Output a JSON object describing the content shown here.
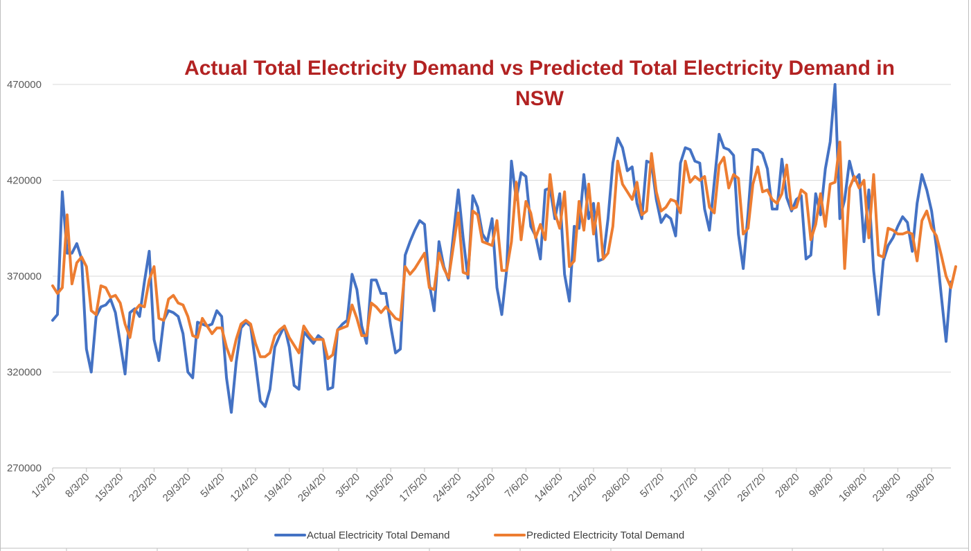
{
  "chart_data": {
    "type": "line",
    "title": "Actual Total Electricity Demand vs Predicted Total Electricity Demand in NSW",
    "title_lines": [
      "Actual Total Electricity Demand vs Predicted Total Electricity Demand in",
      "NSW"
    ],
    "xlabel": "",
    "ylabel": "",
    "ylim": [
      270000,
      470000
    ],
    "yticks": [
      270000,
      320000,
      370000,
      420000,
      470000
    ],
    "grid": true,
    "legend_position": "bottom",
    "x_tick_labels": [
      "1/3/20",
      "8/3/20",
      "15/3/20",
      "22/3/20",
      "29/3/20",
      "5/4/20",
      "12/4/20",
      "19/4/20",
      "26/4/20",
      "3/5/20",
      "10/5/20",
      "17/5/20",
      "24/5/20",
      "31/5/20",
      "7/6/20",
      "14/6/20",
      "21/6/20",
      "28/6/20",
      "5/7/20",
      "12/7/20",
      "19/7/20",
      "26/7/20",
      "2/8/20",
      "9/8/20",
      "16/8/20",
      "23/8/20",
      "30/8/20"
    ],
    "x_start": "1/3/20",
    "x_end": "31/8/20",
    "series": [
      {
        "name": "Actual Electricity Total Demand",
        "color": "#4472c4",
        "values": [
          347000,
          350000,
          414000,
          382000,
          382000,
          387000,
          379000,
          332000,
          320000,
          349000,
          354000,
          355000,
          358000,
          351000,
          335000,
          319000,
          351000,
          353000,
          349000,
          367000,
          383000,
          337000,
          326000,
          347000,
          352000,
          351000,
          349000,
          340000,
          320000,
          317000,
          346000,
          345000,
          344000,
          345000,
          352000,
          349000,
          317000,
          299000,
          325000,
          343000,
          346000,
          344000,
          325000,
          305000,
          302000,
          311000,
          333000,
          339000,
          344000,
          333000,
          313000,
          311000,
          341000,
          338000,
          335000,
          339000,
          337000,
          311000,
          312000,
          342000,
          345000,
          347000,
          371000,
          363000,
          344000,
          335000,
          368000,
          368000,
          361000,
          361000,
          344000,
          330000,
          332000,
          381000,
          388000,
          394000,
          399000,
          397000,
          366000,
          352000,
          388000,
          375000,
          368000,
          392000,
          415000,
          390000,
          369000,
          412000,
          406000,
          392000,
          388000,
          400000,
          364000,
          350000,
          373000,
          430000,
          410000,
          424000,
          422000,
          396000,
          391000,
          379000,
          415000,
          416000,
          400000,
          413000,
          371000,
          357000,
          396000,
          395000,
          423000,
          400000,
          408000,
          378000,
          379000,
          400000,
          429000,
          442000,
          437000,
          425000,
          427000,
          408000,
          400000,
          430000,
          429000,
          410000,
          398000,
          402000,
          400000,
          391000,
          429000,
          437000,
          436000,
          430000,
          429000,
          405000,
          394000,
          419000,
          444000,
          437000,
          436000,
          433000,
          392000,
          374000,
          403000,
          436000,
          436000,
          434000,
          426000,
          405000,
          405000,
          431000,
          411000,
          404000,
          410000,
          412000,
          379000,
          381000,
          413000,
          402000,
          426000,
          440000,
          470000,
          400000,
          410000,
          430000,
          420000,
          423000,
          388000,
          415000,
          373000,
          350000,
          378000,
          386000,
          390000,
          396000,
          401000,
          398000,
          383000,
          408000,
          423000,
          415000,
          404000,
          385000,
          360000,
          336000,
          367000
        ]
      },
      {
        "name": "Predicted Electricity Total Demand",
        "color": "#ed7d31",
        "values": [
          365000,
          361000,
          364000,
          402000,
          366000,
          377000,
          380000,
          375000,
          352000,
          350000,
          365000,
          364000,
          359000,
          360000,
          356000,
          345000,
          338000,
          352000,
          355000,
          354000,
          368000,
          375000,
          348000,
          347000,
          358000,
          360000,
          356000,
          355000,
          349000,
          339000,
          338000,
          348000,
          344000,
          340000,
          343000,
          343000,
          333000,
          326000,
          337000,
          345000,
          347000,
          345000,
          335000,
          328000,
          328000,
          330000,
          339000,
          342000,
          344000,
          338000,
          334000,
          330000,
          344000,
          340000,
          337000,
          337000,
          337000,
          327000,
          329000,
          342000,
          343000,
          344000,
          355000,
          348000,
          339000,
          339000,
          356000,
          354000,
          351000,
          354000,
          351000,
          348000,
          347000,
          375000,
          371000,
          374000,
          378000,
          382000,
          364000,
          363000,
          382000,
          374000,
          369000,
          386000,
          403000,
          372000,
          371000,
          404000,
          402000,
          388000,
          387000,
          386000,
          399000,
          373000,
          373000,
          388000,
          419000,
          389000,
          409000,
          403000,
          390000,
          397000,
          389000,
          423000,
          403000,
          395000,
          414000,
          375000,
          378000,
          409000,
          394000,
          418000,
          392000,
          408000,
          379000,
          382000,
          396000,
          430000,
          418000,
          414000,
          410000,
          419000,
          402000,
          404000,
          434000,
          414000,
          404000,
          406000,
          410000,
          409000,
          403000,
          430000,
          419000,
          422000,
          420000,
          422000,
          406000,
          403000,
          428000,
          432000,
          416000,
          423000,
          421000,
          392000,
          395000,
          418000,
          427000,
          414000,
          415000,
          410000,
          408000,
          413000,
          428000,
          405000,
          406000,
          415000,
          413000,
          389000,
          397000,
          413000,
          396000,
          418000,
          419000,
          440000,
          374000,
          416000,
          422000,
          416000,
          420000,
          390000,
          423000,
          381000,
          380000,
          395000,
          394000,
          392000,
          392000,
          393000,
          392000,
          378000,
          399000,
          404000,
          395000,
          391000,
          381000,
          370000,
          364000,
          375000
        ]
      }
    ]
  }
}
